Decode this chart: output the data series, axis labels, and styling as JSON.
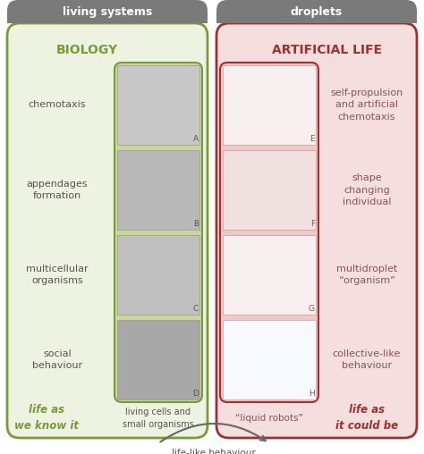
{
  "bg_color": "#ffffff",
  "left_panel_bg": "#edf3e0",
  "left_panel_border": "#7a9a3a",
  "left_img_bg": "#c8d89a",
  "right_panel_bg": "#f5dede",
  "right_panel_border": "#a03030",
  "right_img_bg": "#f0c8c8",
  "header_bg": "#7a7a7a",
  "left_header": "living systems",
  "right_header": "droplets",
  "left_title": "BIOLOGY",
  "right_title": "ARTIFICIAL LIFE",
  "left_labels": [
    "chemotaxis",
    "appendages\nformation",
    "multicellular\norganisms",
    "social\nbehaviour"
  ],
  "right_labels": [
    "self-propulsion\nand artificial\nchemotaxis",
    "shape\nchanging\nindividual",
    "multidroplet\n“organism”",
    "collective-like\nbehaviour"
  ],
  "img_letters_left": [
    "A",
    "B",
    "C",
    "D"
  ],
  "img_letters_right": [
    "E",
    "F",
    "G",
    "H"
  ],
  "img_colors_left": [
    "#c8c8c8",
    "#b8b8b8",
    "#c0c0c0",
    "#a8a8a8"
  ],
  "img_colors_right": [
    "#f8f0f0",
    "#f0e0e0",
    "#f8f0f0",
    "#f8f8ff"
  ],
  "bottom_left_italic": "life as\nwe know it",
  "bottom_left_caption": "living cells and\nsmall organisms",
  "bottom_right_caption": "“liquid robots”",
  "bottom_right_italic": "life as\nit could be",
  "bottom_arrow_text": "life-like behaviour"
}
